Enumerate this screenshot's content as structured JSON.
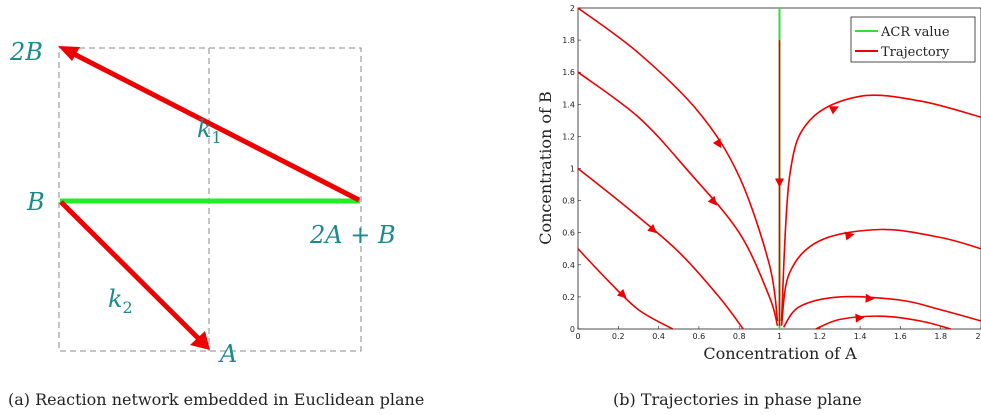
{
  "left_panel": {
    "caption": "(a) Reaction network embedded in Euclidean plane",
    "labels": {
      "node_2B": "2B",
      "node_B": "B",
      "node_A": "A",
      "node_2A_B": "2A + B",
      "rate_k1": "k1",
      "rate_k2": "k2"
    },
    "colors": {
      "reaction": "#ee0000",
      "acr_edge": "#22ee22",
      "label": "#1a8a8a",
      "grid": "#888888"
    }
  },
  "right_panel": {
    "caption": "(b) Trajectories in phase plane"
  },
  "chart_data": {
    "type": "line",
    "title": "",
    "xlabel": "Concentration of A",
    "ylabel": "Concentration of B",
    "xlim": [
      0,
      2
    ],
    "ylim": [
      0,
      2
    ],
    "xticks": [
      "0",
      "0.2",
      "0.4",
      "0.6",
      "0.8",
      "1",
      "1.2",
      "1.4",
      "1.6",
      "1.8",
      "2"
    ],
    "yticks": [
      "0",
      "0.2",
      "0.4",
      "0.6",
      "0.8",
      "1",
      "1.2",
      "1.4",
      "1.6",
      "1.8",
      "2"
    ],
    "legend_position": "top-right",
    "series": [
      {
        "name": "ACR value",
        "color": "#33dd33",
        "x": [
          1,
          1
        ],
        "y": [
          0,
          2
        ]
      },
      {
        "name": "Trajectory",
        "color": "#ee0000",
        "curves": [
          {
            "x": [
              0,
              0.3,
              0.6,
              0.8,
              0.95,
              0.99
            ],
            "y": [
              2.0,
              1.72,
              1.35,
              0.95,
              0.4,
              0.05
            ]
          },
          {
            "x": [
              0,
              0.3,
              0.55,
              0.8,
              0.95,
              0.99
            ],
            "y": [
              1.6,
              1.32,
              0.98,
              0.6,
              0.2,
              0.02
            ]
          },
          {
            "x": [
              0,
              0.25,
              0.5,
              0.7,
              0.82
            ],
            "y": [
              1.0,
              0.75,
              0.48,
              0.2,
              0.0
            ]
          },
          {
            "x": [
              0,
              0.15,
              0.3,
              0.47
            ],
            "y": [
              0.5,
              0.3,
              0.12,
              0.0
            ]
          },
          {
            "x": [
              1.01,
              1.05,
              1.15,
              1.4,
              1.7,
              2.0
            ],
            "y": [
              0.05,
              0.95,
              1.3,
              1.45,
              1.42,
              1.32
            ]
          },
          {
            "x": [
              1.01,
              1.05,
              1.2,
              1.5,
              1.8,
              2.0
            ],
            "y": [
              0.02,
              0.35,
              0.55,
              0.62,
              0.57,
              0.5
            ]
          },
          {
            "x": [
              1.02,
              1.1,
              1.3,
              1.6,
              1.8,
              2.0
            ],
            "y": [
              0.01,
              0.14,
              0.2,
              0.18,
              0.12,
              0.05
            ]
          },
          {
            "x": [
              1.18,
              1.3,
              1.5,
              1.7,
              1.85
            ],
            "y": [
              0.0,
              0.06,
              0.08,
              0.05,
              0.0
            ]
          },
          {
            "x": [
              1.0,
              1.0
            ],
            "y": [
              1.8,
              0.02
            ]
          }
        ]
      }
    ]
  }
}
